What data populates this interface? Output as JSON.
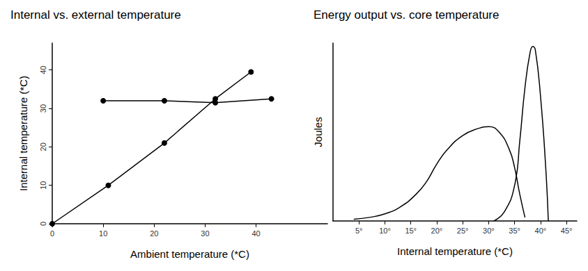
{
  "chart_data": [
    {
      "type": "line",
      "title": "Internal vs. external temperature",
      "x_label": "Ambient temperature (*C)",
      "y_label": "Internal temperature (*C)",
      "xlim": [
        0,
        54
      ],
      "xticks": [
        0,
        10,
        20,
        30,
        40
      ],
      "ylim": [
        0,
        47
      ],
      "yticks": [
        0,
        10,
        20,
        30,
        40
      ],
      "grid": false,
      "marker": "circle",
      "line_style": "solid",
      "series": [
        {
          "color": "#000000",
          "x": [
            10,
            22,
            32,
            43
          ],
          "values": [
            32,
            32,
            31.5,
            32.5
          ]
        },
        {
          "color": "#000000",
          "x": [
            0,
            11,
            22,
            32,
            39
          ],
          "values": [
            0,
            10,
            21,
            32.5,
            39.5
          ]
        }
      ]
    },
    {
      "type": "line",
      "title": "Energy output vs. core temperature",
      "x_label": "Internal temperature (*C)",
      "y_label": "Joules",
      "xlim": [
        0,
        47
      ],
      "xticks": [
        {
          "value": 5,
          "label": "5°"
        },
        {
          "value": 10,
          "label": "10°"
        },
        {
          "value": 15,
          "label": "15°"
        },
        {
          "value": 20,
          "label": "20°"
        },
        {
          "value": 25,
          "label": "25°"
        },
        {
          "value": 30,
          "label": "30°"
        },
        {
          "value": 35,
          "label": "35°"
        },
        {
          "value": 40,
          "label": "40°"
        },
        {
          "value": 45,
          "label": "45°"
        }
      ],
      "ylim": [
        0,
        100
      ],
      "tick_labels": "x",
      "grid": false,
      "marker": "none",
      "line_style": "solid",
      "series": [
        {
          "color": "#000000",
          "x": [
            4,
            7,
            10,
            13,
            16,
            18,
            20,
            22,
            25,
            28,
            30,
            32,
            34,
            35,
            36,
            37
          ],
          "values": [
            1,
            2,
            4,
            8,
            15,
            22,
            32,
            40,
            48,
            52,
            53,
            50,
            40,
            30,
            15,
            2
          ]
        },
        {
          "color": "#000000",
          "x": [
            31,
            33,
            35,
            36,
            37,
            38,
            38.5,
            39,
            40,
            41,
            41.5
          ],
          "values": [
            0,
            5,
            20,
            45,
            75,
            95,
            98,
            96,
            70,
            30,
            0
          ]
        }
      ]
    }
  ]
}
